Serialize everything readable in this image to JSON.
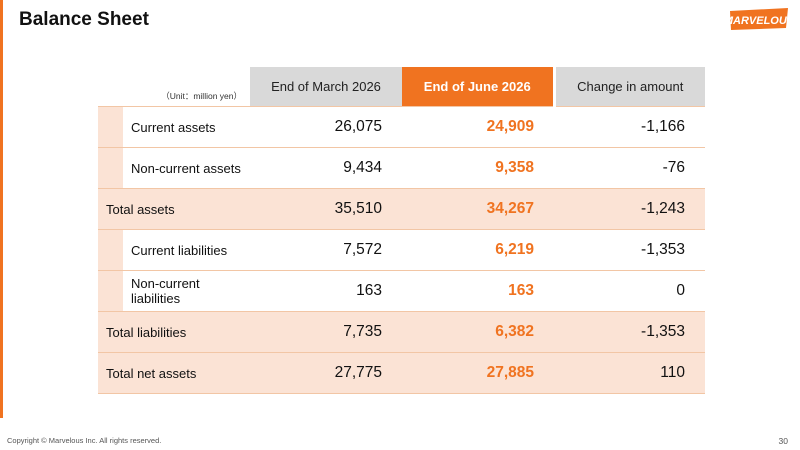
{
  "title": "Balance Sheet",
  "logo_text": "MARVELOUS",
  "table": {
    "unit": "（Unit：million yen）",
    "headers": [
      "End of March 2026",
      "End of June 2026",
      "Change in amount"
    ],
    "rows": [
      {
        "label": "Current assets",
        "mar": "26,075",
        "jun": "24,909",
        "chg": "-1,166"
      },
      {
        "label": "Non-current assets",
        "mar": "9,434",
        "jun": "9,358",
        "chg": "-76"
      },
      {
        "label": "Total assets",
        "mar": "35,510",
        "jun": "34,267",
        "chg": "-1,243"
      },
      {
        "label": "Current liabilities",
        "mar": "7,572",
        "jun": "6,219",
        "chg": "-1,353"
      },
      {
        "label": "Non-current liabilities",
        "mar": "163",
        "jun": "163",
        "chg": "0"
      },
      {
        "label": "Total liabilities",
        "mar": "7,735",
        "jun": "6,382",
        "chg": "-1,353"
      },
      {
        "label": "Total net assets",
        "mar": "27,775",
        "jun": "27,885",
        "chg": "110"
      }
    ]
  },
  "footer": "Copyright © Marvelous Inc. All rights reserved.",
  "page_number": "30",
  "colors": {
    "accent": "#F07320",
    "row_fill": "#FBE3D5",
    "header_gray": "#D9D9D9"
  }
}
